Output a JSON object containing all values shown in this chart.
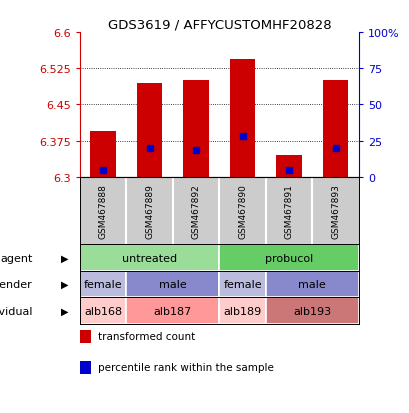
{
  "title": "GDS3619 / AFFYCUSTOMHF20828",
  "samples": [
    "GSM467888",
    "GSM467889",
    "GSM467892",
    "GSM467890",
    "GSM467891",
    "GSM467893"
  ],
  "bar_values": [
    6.395,
    6.495,
    6.5,
    6.545,
    6.345,
    6.5
  ],
  "bar_base": 6.3,
  "percentile_values": [
    6.315,
    6.36,
    6.355,
    6.385,
    6.315,
    6.36
  ],
  "ylim": [
    6.3,
    6.6
  ],
  "yticks_left": [
    6.3,
    6.375,
    6.45,
    6.525,
    6.6
  ],
  "yticks_right": [
    0,
    25,
    50,
    75,
    100
  ],
  "bar_color": "#CC0000",
  "percentile_color": "#0000CC",
  "bar_width": 0.55,
  "sample_box_color": "#CCCCCC",
  "agent_row": {
    "groups": [
      {
        "label": "untreated",
        "span": [
          0,
          3
        ],
        "color": "#99DD99"
      },
      {
        "label": "probucol",
        "span": [
          3,
          6
        ],
        "color": "#66CC66"
      }
    ]
  },
  "gender_row": {
    "groups": [
      {
        "label": "female",
        "span": [
          0,
          1
        ],
        "color": "#BBBBDD"
      },
      {
        "label": "male",
        "span": [
          1,
          3
        ],
        "color": "#8888CC"
      },
      {
        "label": "female",
        "span": [
          3,
          4
        ],
        "color": "#BBBBDD"
      },
      {
        "label": "male",
        "span": [
          4,
          6
        ],
        "color": "#8888CC"
      }
    ]
  },
  "individual_row": {
    "groups": [
      {
        "label": "alb168",
        "span": [
          0,
          1
        ],
        "color": "#FFCCCC"
      },
      {
        "label": "alb187",
        "span": [
          1,
          3
        ],
        "color": "#FF9999"
      },
      {
        "label": "alb189",
        "span": [
          3,
          4
        ],
        "color": "#FFCCCC"
      },
      {
        "label": "alb193",
        "span": [
          4,
          6
        ],
        "color": "#CC7777"
      }
    ]
  },
  "row_labels": [
    "agent",
    "gender",
    "individual"
  ],
  "legend": [
    {
      "color": "#CC0000",
      "label": "transformed count"
    },
    {
      "color": "#0000CC",
      "label": "percentile rank within the sample"
    }
  ],
  "left_color": "#CC0000",
  "right_color": "#0000CC"
}
